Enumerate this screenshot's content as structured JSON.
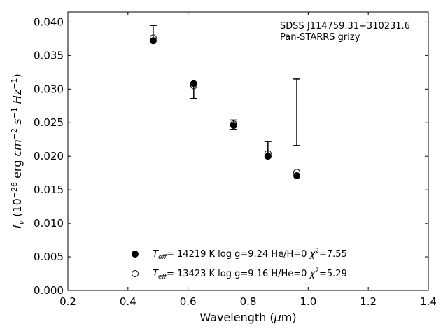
{
  "chart_data": {
    "type": "scatter",
    "xlabel": "Wavelength (μm)",
    "ylabel": "f_ν (10^−26 erg cm^−2 s^−1 Hz^−1)",
    "xlim": [
      0.2,
      1.4
    ],
    "ylim": [
      0.0,
      0.0415
    ],
    "x_ticks": [
      0.2,
      0.4,
      0.6,
      0.8,
      1.0,
      1.2,
      1.4
    ],
    "x_tick_labels": [
      "0.2",
      "0.4",
      "0.6",
      "0.8",
      "1.0",
      "1.2",
      "1.4"
    ],
    "y_ticks": [
      0.0,
      0.005,
      0.01,
      0.015,
      0.02,
      0.025,
      0.03,
      0.035,
      0.04
    ],
    "y_tick_labels": [
      "0.000",
      "0.005",
      "0.010",
      "0.015",
      "0.020",
      "0.025",
      "0.030",
      "0.035",
      "0.040"
    ],
    "grid": false,
    "annotations": [
      "SDSS J114759.31+310231.6",
      "Pan-STARRS grizy"
    ],
    "observed": {
      "x": [
        0.484,
        0.619,
        0.752,
        0.866,
        0.962
      ],
      "y_upper": [
        0.0395,
        0.031,
        0.0254,
        0.0222,
        0.0315
      ],
      "y_lower": [
        0.0372,
        0.0286,
        0.024,
        0.02,
        0.0216
      ]
    },
    "series": [
      {
        "name": "He/H=0",
        "legend": {
          "teff_value": "= 14219 K  log g=9.24  He/H=0",
          "chi_value": "=7.55"
        },
        "marker": "filled-circle",
        "x": [
          0.484,
          0.619,
          0.752,
          0.866,
          0.962
        ],
        "y": [
          0.0372,
          0.0308,
          0.0246,
          0.02,
          0.0171
        ]
      },
      {
        "name": "H/He=0",
        "legend": {
          "teff_value": "= 13423 K  log g=9.16  H/He=0",
          "chi_value": "=5.29"
        },
        "marker": "open-circle",
        "x": [
          0.484,
          0.619,
          0.752,
          0.866,
          0.962
        ],
        "y": [
          0.0376,
          0.0305,
          0.0248,
          0.0204,
          0.0176
        ]
      }
    ]
  }
}
